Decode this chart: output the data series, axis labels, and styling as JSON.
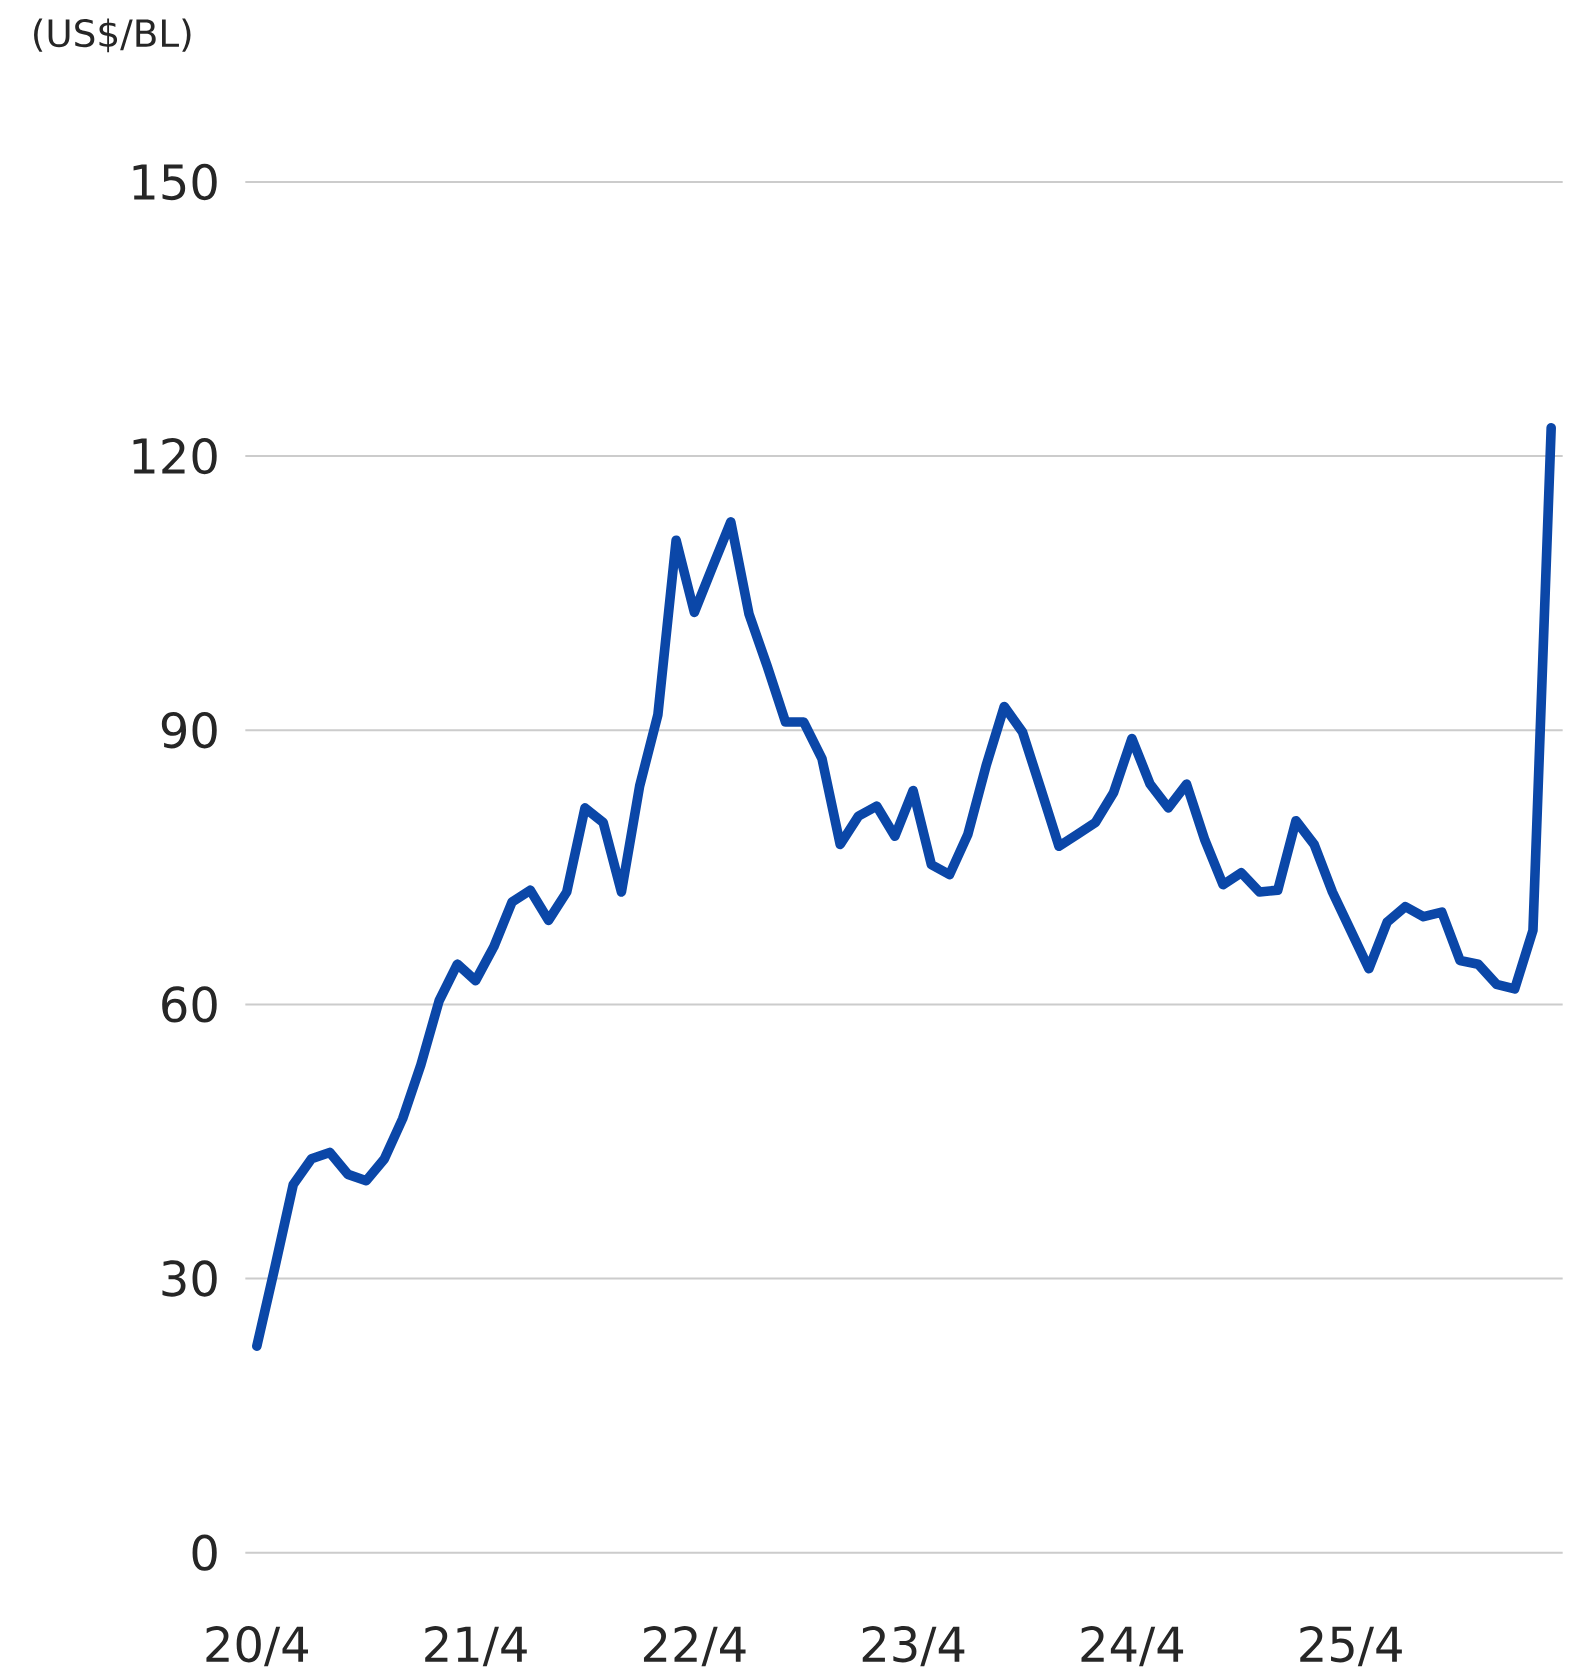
{
  "chart_data": {
    "type": "line",
    "ylabel": "(US$/BL)",
    "categories": [
      "20/4",
      null,
      null,
      null,
      null,
      null,
      null,
      null,
      null,
      null,
      null,
      null,
      "21/4",
      null,
      null,
      null,
      null,
      null,
      null,
      null,
      null,
      null,
      null,
      null,
      "22/4",
      null,
      null,
      null,
      null,
      null,
      null,
      null,
      null,
      null,
      null,
      null,
      "23/4",
      null,
      null,
      null,
      null,
      null,
      null,
      null,
      null,
      null,
      null,
      null,
      "24/4",
      null,
      null,
      null,
      null,
      null,
      null,
      null,
      null,
      null,
      null,
      null,
      "25/4",
      null,
      null,
      null,
      null,
      null,
      null,
      null,
      null,
      null,
      null,
      null
    ],
    "values": [
      22.6,
      31.3,
      40.3,
      43.1,
      43.8,
      41.4,
      40.7,
      43.1,
      47.5,
      53.4,
      60.4,
      64.4,
      62.6,
      66.3,
      71.2,
      72.5,
      69.2,
      72.3,
      81.5,
      79.9,
      72.3,
      83.9,
      91.7,
      110.8,
      102.9,
      107.9,
      112.8,
      102.7,
      97.0,
      90.9,
      90.9,
      86.9,
      77.5,
      80.6,
      81.7,
      78.4,
      83.4,
      75.3,
      74.2,
      78.6,
      86.1,
      92.6,
      89.8,
      83.6,
      77.3,
      78.6,
      79.9,
      83.2,
      89.1,
      84.1,
      81.5,
      84.1,
      78.0,
      73.1,
      74.4,
      72.3,
      72.5,
      80.1,
      77.5,
      72.3,
      68.1,
      63.9,
      69.0,
      70.7,
      69.6,
      70.1,
      64.8,
      64.4,
      62.2,
      61.7,
      68.1,
      123.1
    ],
    "color": "#0b47a8",
    "ylim": [
      0,
      150
    ],
    "yticks": [
      0,
      30,
      60,
      90,
      120,
      150
    ],
    "grid": "y",
    "marker": "none",
    "line_style": "solid"
  }
}
